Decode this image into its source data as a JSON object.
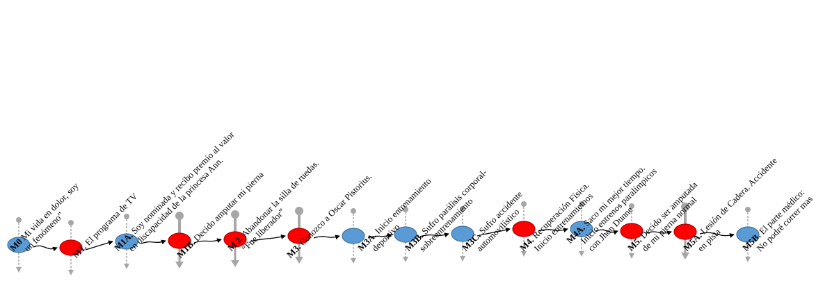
{
  "colors": {
    "blue": "#5b9bd5",
    "blue_stroke": "#41719c",
    "red": "#ff0000",
    "red_stroke": "#b00000",
    "connector": "#a6a6a6",
    "arrow": "#000000"
  },
  "milestones": [
    {
      "code": "M0",
      "lines": [
        "Mi vida en dolor, soy",
        "un fenómeno”"
      ],
      "color": "blue",
      "weight": "small"
    },
    {
      "code": "M1.",
      "lines": [
        "El programa de TV"
      ],
      "color": "red",
      "weight": "small"
    },
    {
      "code": "M1A.",
      "lines": [
        "Soy nominada y recibo premio al valor",
        "en discapacidad de la princesa Ann."
      ],
      "color": "blue",
      "weight": "small"
    },
    {
      "code": "M1B.",
      "lines": [
        "Decido amputar mi pierna"
      ],
      "color": "red",
      "weight": "large"
    },
    {
      "code": "M 2.",
      "lines": [
        "Abandonar la silla de ruedas.",
        "“Fue liberador”"
      ],
      "color": "red",
      "weight": "large"
    },
    {
      "code": "M3.",
      "lines": [
        "Conozco a Oscar Pistorius."
      ],
      "color": "red",
      "weight": "large"
    },
    {
      "code": "M3A.",
      "lines": [
        "Inicio entrenamiento",
        "deportivo"
      ],
      "color": "blue",
      "weight": "small"
    },
    {
      "code": "M3B.",
      "lines": [
        "Sufro parálisis corporal-",
        "sobreentrenamiento"
      ],
      "color": "blue",
      "weight": "small"
    },
    {
      "code": "M3C.",
      "lines": [
        "Sufro accidente",
        "automovilístico"
      ],
      "color": "blue",
      "weight": "small"
    },
    {
      "code": "M4.",
      "lines": [
        "Recuperación Física.",
        "Inicio entrenamietnos"
      ],
      "color": "red",
      "weight": "small"
    },
    {
      "code": "M4A.",
      "lines": [
        "Saco mi mejor tiempo.",
        "Inicio entrenos paralímpicos",
        "con Jhon Dunne"
      ],
      "color": "blue",
      "weight": "small"
    },
    {
      "code": "M5.",
      "lines": [
        "Decido ser amputada",
        "de mi pierna normal"
      ],
      "color": "red",
      "weight": "small"
    },
    {
      "code": "M5A.",
      "lines": [
        "Lesión de Cadera. Accidente",
        "en pista"
      ],
      "color": "red",
      "weight": "large"
    },
    {
      "code": "M5B.",
      "lines": [
        "El parte médico:",
        "No podré correr mas"
      ],
      "color": "blue",
      "weight": "small"
    }
  ]
}
